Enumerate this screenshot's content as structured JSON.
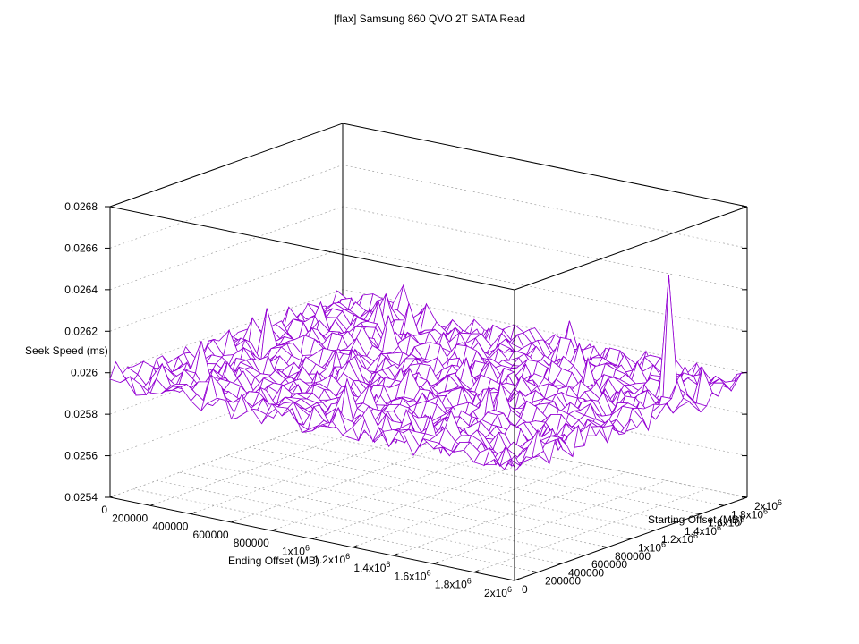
{
  "chart_data": {
    "type": "surface",
    "title": "[flax] Samsung 860 QVO 2T SATA Read",
    "zlabel": "Seek Speed (ms)",
    "xlabel": "Ending Offset (MB)",
    "ylabel": "Starting Offset (MB)",
    "z_ticks": [
      "0.0254",
      "0.0256",
      "0.0258",
      "0.026",
      "0.0262",
      "0.0264",
      "0.0266",
      "0.0268"
    ],
    "x_ticks": [
      {
        "base": "0",
        "exp": ""
      },
      {
        "base": "200000",
        "exp": ""
      },
      {
        "base": "400000",
        "exp": ""
      },
      {
        "base": "600000",
        "exp": ""
      },
      {
        "base": "800000",
        "exp": ""
      },
      {
        "base": "1x10",
        "exp": "6"
      },
      {
        "base": "1.2x10",
        "exp": "6"
      },
      {
        "base": "1.4x10",
        "exp": "6"
      },
      {
        "base": "1.6x10",
        "exp": "6"
      },
      {
        "base": "1.8x10",
        "exp": "6"
      },
      {
        "base": "2x10",
        "exp": "6"
      }
    ],
    "y_ticks": [
      {
        "base": "0",
        "exp": ""
      },
      {
        "base": "200000",
        "exp": ""
      },
      {
        "base": "400000",
        "exp": ""
      },
      {
        "base": "600000",
        "exp": ""
      },
      {
        "base": "800000",
        "exp": ""
      },
      {
        "base": "1x10",
        "exp": "6"
      },
      {
        "base": "1.2x10",
        "exp": "6"
      },
      {
        "base": "1.4x10",
        "exp": "6"
      },
      {
        "base": "1.6x10",
        "exp": "6"
      },
      {
        "base": "1.8x10",
        "exp": "6"
      },
      {
        "base": "2x10",
        "exp": "6"
      }
    ],
    "x_range": [
      0,
      2000000
    ],
    "y_range": [
      0,
      2000000
    ],
    "z_range": [
      0.0254,
      0.0268
    ],
    "baseline_seek_ms": 0.02595,
    "peak_seek_ms": 0.02655,
    "peak_at_mb": [
      1900000,
      1500000
    ],
    "secondary_peaks": [
      {
        "at_mb": [
          200000,
          1000000
        ],
        "seek_ms": 0.02615
      },
      {
        "at_mb": [
          1000000,
          300000
        ],
        "seek_ms": 0.02611
      },
      {
        "at_mb": [
          1400000,
          1600000
        ],
        "seek_ms": 0.0261
      }
    ],
    "grid_points": 40,
    "colors": {
      "surface_top": "#9400d3",
      "surface_bottom": "#009e73"
    },
    "grid": true
  }
}
